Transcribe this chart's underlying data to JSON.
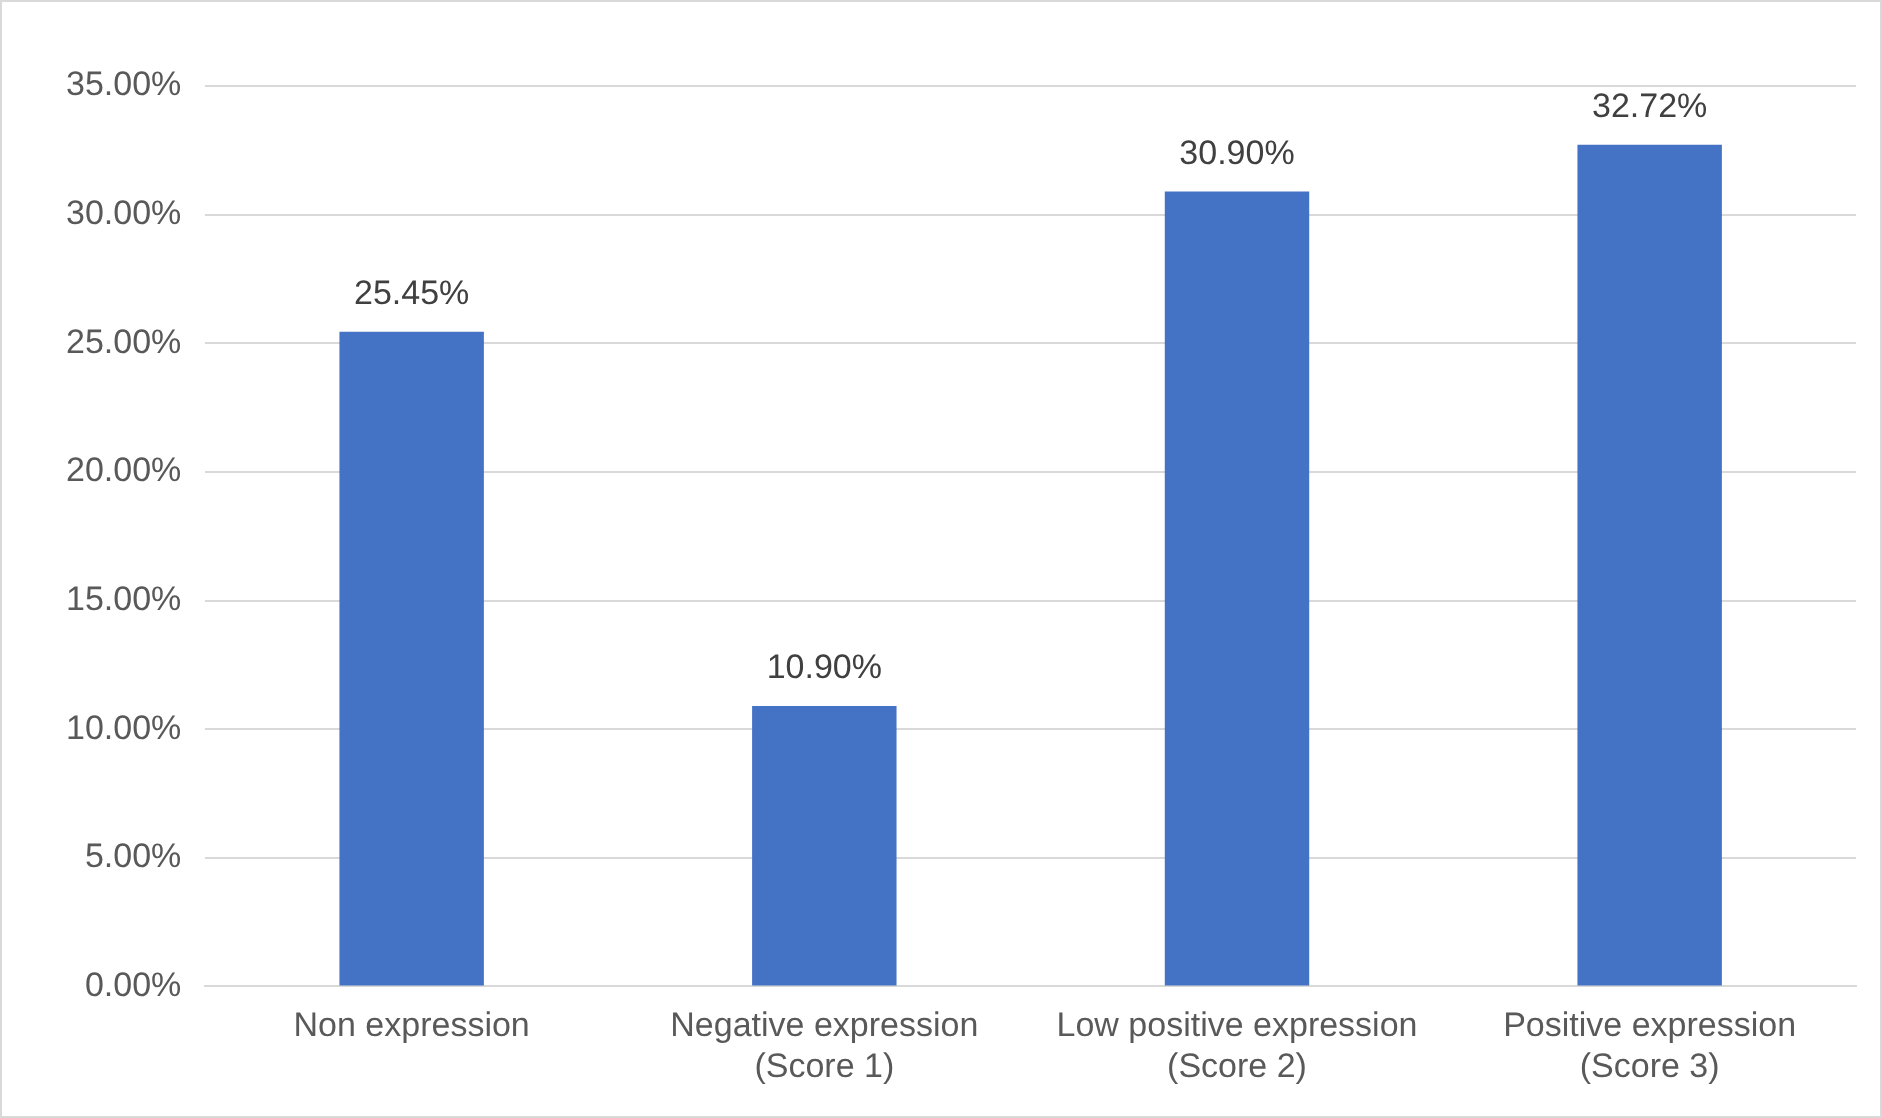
{
  "chart_data": {
    "type": "bar",
    "categories": [
      "Non expression",
      "Negative expression (Score 1)",
      "Low positive expression (Score 2)",
      "Positive expression (Score 3)"
    ],
    "values": [
      25.45,
      10.9,
      30.9,
      32.72
    ],
    "color": "#4472c4",
    "value_labels": [
      "25.45%",
      "10.90%",
      "30.90%",
      "32.72%"
    ],
    "ylim": [
      0,
      35
    ],
    "yticks": [
      {
        "value": 0,
        "label": "0.00%"
      },
      {
        "value": 5,
        "label": "5.00%"
      },
      {
        "value": 10,
        "label": "10.00%"
      },
      {
        "value": 15,
        "label": "15.00%"
      },
      {
        "value": 20,
        "label": "20.00%"
      },
      {
        "value": 25,
        "label": "25.00%"
      },
      {
        "value": 30,
        "label": "30.00%"
      },
      {
        "value": 35,
        "label": "35.00%"
      }
    ],
    "grid": "y",
    "legend": false
  }
}
